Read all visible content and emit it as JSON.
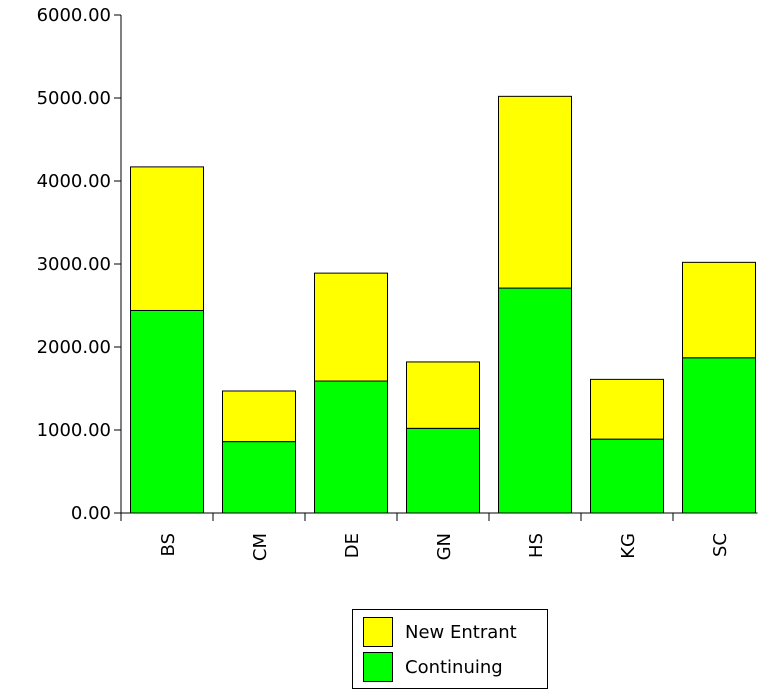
{
  "chart_data": {
    "type": "bar",
    "stacked": true,
    "categories": [
      "BS",
      "CM",
      "DE",
      "GN",
      "HS",
      "KG",
      "SC"
    ],
    "series": [
      {
        "name": "Continuing",
        "color": "#00ff00",
        "values": [
          2440,
          860,
          1590,
          1020,
          2710,
          890,
          1870
        ]
      },
      {
        "name": "New Entrant",
        "color": "#ffff00",
        "values": [
          1730,
          610,
          1300,
          800,
          2310,
          720,
          1150
        ]
      }
    ],
    "totals": [
      4170,
      1470,
      2890,
      1820,
      5020,
      1610,
      3020
    ],
    "ylim": [
      0,
      6000
    ],
    "yticks": [
      "0.00",
      "1000.00",
      "2000.00",
      "3000.00",
      "4000.00",
      "5000.00",
      "6000.00"
    ],
    "grid": false,
    "legend_position": "bottom"
  },
  "legend": {
    "items": [
      {
        "label": "New Entrant",
        "color": "#ffff00"
      },
      {
        "label": "Continuing",
        "color": "#00ff00"
      }
    ]
  }
}
